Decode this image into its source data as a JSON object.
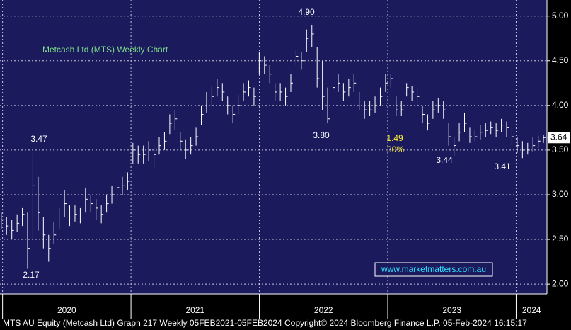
{
  "chart_data": {
    "type": "ohlc",
    "title": "Metcash Ltd (MTS) Weekly Chart",
    "x": [
      2019.99,
      2020.031,
      2020.072,
      2020.113,
      2020.154,
      2020.195,
      2020.236,
      2020.277,
      2020.318,
      2020.359,
      2020.4,
      2020.441,
      2020.482,
      2020.523,
      2020.564,
      2020.605,
      2020.646,
      2020.687,
      2020.728,
      2020.769,
      2020.81,
      2020.851,
      2020.892,
      2020.933,
      2020.974,
      2021.015,
      2021.056,
      2021.097,
      2021.138,
      2021.179,
      2021.22,
      2021.261,
      2021.302,
      2021.343,
      2021.384,
      2021.425,
      2021.466,
      2021.507,
      2021.548,
      2021.589,
      2021.63,
      2021.671,
      2021.712,
      2021.753,
      2021.794,
      2021.835,
      2021.876,
      2021.917,
      2021.958,
      2021.999,
      2022.04,
      2022.081,
      2022.122,
      2022.163,
      2022.204,
      2022.245,
      2022.286,
      2022.327,
      2022.368,
      2022.409,
      2022.45,
      2022.491,
      2022.532,
      2022.573,
      2022.614,
      2022.655,
      2022.696,
      2022.737,
      2022.778,
      2022.819,
      2022.86,
      2022.901,
      2022.942,
      2022.983,
      2023.024,
      2023.065,
      2023.106,
      2023.147,
      2023.188,
      2023.229,
      2023.27,
      2023.311,
      2023.352,
      2023.393,
      2023.434,
      2023.475,
      2023.516,
      2023.557,
      2023.598,
      2023.639,
      2023.68,
      2023.721,
      2023.762,
      2023.803,
      2023.844,
      2023.885,
      2023.926,
      2023.967,
      2024.008,
      2024.049,
      2024.09,
      2024.131,
      2024.172,
      2024.213
    ],
    "series": [
      {
        "color": "#ffffff",
        "high": [
          2.8,
          2.75,
          2.72,
          2.78,
          2.85,
          2.8,
          3.47,
          3.2,
          2.75,
          2.55,
          2.7,
          2.85,
          3.05,
          2.88,
          2.88,
          2.85,
          3.08,
          3.0,
          2.95,
          2.88,
          3.0,
          3.1,
          3.18,
          3.2,
          3.25,
          3.58,
          3.55,
          3.55,
          3.6,
          3.55,
          3.65,
          3.7,
          3.9,
          3.95,
          3.7,
          3.62,
          3.65,
          3.75,
          4.0,
          4.15,
          4.22,
          4.3,
          4.25,
          4.1,
          4.0,
          4.12,
          4.25,
          4.28,
          4.2,
          4.6,
          4.55,
          4.45,
          4.25,
          4.25,
          4.2,
          4.35,
          4.62,
          4.6,
          4.85,
          4.9,
          4.65,
          4.5,
          4.2,
          4.3,
          4.35,
          4.25,
          4.3,
          4.35,
          4.15,
          4.05,
          4.05,
          4.1,
          4.2,
          4.35,
          4.35,
          4.1,
          4.05,
          4.25,
          4.22,
          4.2,
          4.0,
          3.9,
          4.05,
          4.08,
          4.05,
          3.8,
          3.65,
          3.8,
          3.92,
          3.75,
          3.72,
          3.78,
          3.8,
          3.82,
          3.8,
          3.85,
          3.82,
          3.75,
          3.65,
          3.6,
          3.58,
          3.65,
          3.66,
          3.67
        ],
        "low": [
          2.62,
          2.55,
          2.5,
          2.58,
          2.65,
          2.17,
          2.5,
          2.6,
          2.4,
          2.25,
          2.45,
          2.62,
          2.75,
          2.65,
          2.7,
          2.68,
          2.8,
          2.8,
          2.72,
          2.68,
          2.8,
          2.9,
          2.98,
          3.0,
          3.05,
          3.35,
          3.35,
          3.35,
          3.38,
          3.3,
          3.45,
          3.5,
          3.68,
          3.72,
          3.5,
          3.4,
          3.45,
          3.55,
          3.78,
          3.92,
          4.0,
          4.1,
          4.05,
          3.9,
          3.8,
          3.9,
          4.05,
          4.1,
          4.0,
          4.35,
          4.35,
          4.25,
          4.05,
          4.05,
          4.0,
          4.15,
          4.45,
          4.4,
          4.6,
          4.65,
          4.2,
          3.95,
          3.8,
          4.05,
          4.15,
          4.05,
          4.1,
          4.15,
          3.95,
          3.85,
          3.88,
          3.92,
          4.0,
          4.15,
          4.2,
          3.88,
          3.88,
          4.1,
          4.05,
          4.0,
          3.8,
          3.72,
          3.85,
          3.92,
          3.85,
          3.55,
          3.44,
          3.6,
          3.7,
          3.58,
          3.6,
          3.62,
          3.65,
          3.68,
          3.65,
          3.7,
          3.65,
          3.55,
          3.47,
          3.41,
          3.45,
          3.48,
          3.52,
          3.58
        ],
        "close": [
          2.72,
          2.65,
          2.6,
          2.68,
          2.78,
          2.4,
          3.1,
          2.8,
          2.55,
          2.4,
          2.55,
          2.75,
          2.9,
          2.75,
          2.78,
          2.75,
          2.95,
          2.9,
          2.85,
          2.78,
          2.9,
          3.0,
          3.08,
          3.1,
          3.15,
          3.5,
          3.45,
          3.45,
          3.5,
          3.45,
          3.55,
          3.6,
          3.8,
          3.85,
          3.6,
          3.5,
          3.55,
          3.65,
          3.9,
          4.05,
          4.1,
          4.2,
          4.15,
          4.0,
          3.9,
          4.0,
          4.15,
          4.2,
          4.1,
          4.5,
          4.45,
          4.35,
          4.15,
          4.15,
          4.1,
          4.25,
          4.55,
          4.5,
          4.75,
          4.8,
          4.3,
          4.1,
          3.85,
          4.2,
          4.25,
          4.15,
          4.2,
          4.25,
          4.05,
          3.95,
          3.95,
          4.0,
          4.1,
          4.25,
          4.3,
          3.95,
          3.95,
          4.2,
          4.15,
          4.1,
          3.9,
          3.8,
          3.95,
          4.0,
          3.95,
          3.65,
          3.55,
          3.7,
          3.8,
          3.65,
          3.65,
          3.7,
          3.72,
          3.75,
          3.72,
          3.78,
          3.75,
          3.65,
          3.55,
          3.5,
          3.5,
          3.55,
          3.6,
          3.64
        ]
      }
    ],
    "last_price": 3.64,
    "xlim": [
      2019.98,
      2024.24
    ],
    "xticks": [
      2020,
      2021,
      2022,
      2023,
      2024
    ],
    "ylim": [
      1.89,
      5.18
    ],
    "yticks": [
      {
        "value": 2,
        "label": "2.00"
      },
      {
        "value": 2.5,
        "label": "2.50"
      },
      {
        "value": 3,
        "label": "3.00"
      },
      {
        "value": 3.5,
        "label": "3.50"
      },
      {
        "value": 4,
        "label": "4.00"
      },
      {
        "value": 4.5,
        "label": "4.50"
      },
      {
        "value": 5,
        "label": "5.00"
      }
    ],
    "grid": true,
    "annotations": [
      "4.90",
      "3.80",
      "3.47",
      "2.17",
      "3.44",
      "3.41",
      "1.49",
      "30%"
    ],
    "watermark": "www.marketmatters.com.au",
    "footer": "MTS AU Equity (Metcash Ltd) Graph 217  Weekly 05FEB2021-05FEB2024 Copyright© 2024 Bloomberg Finance L.P. 05-Feb-2024 16:15:17"
  }
}
